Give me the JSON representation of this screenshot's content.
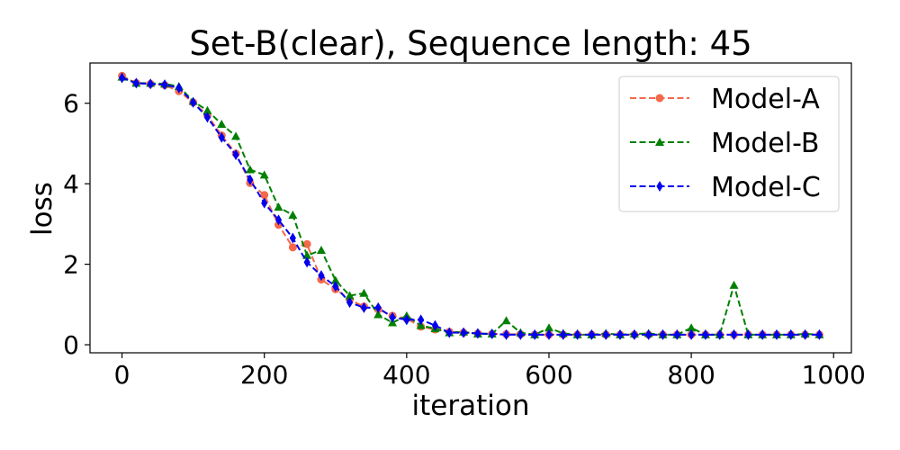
{
  "chart_data": {
    "type": "line",
    "title": "Set-B(clear), Sequence length: 45",
    "xlabel": "iteration",
    "ylabel": "loss",
    "xlim": [
      -45,
      1025
    ],
    "ylim": [
      -0.2,
      7.0
    ],
    "xticks": [
      0,
      200,
      400,
      600,
      800,
      1000
    ],
    "xtick_labels": [
      "0",
      "200",
      "400",
      "600",
      "800",
      "1000"
    ],
    "yticks": [
      0,
      2,
      4,
      6
    ],
    "ytick_labels": [
      "0",
      "2",
      "4",
      "6"
    ],
    "grid": false,
    "legend_position": "top-right",
    "x": [
      0,
      20,
      40,
      60,
      80,
      100,
      120,
      140,
      160,
      180,
      200,
      220,
      240,
      260,
      280,
      300,
      320,
      340,
      360,
      380,
      400,
      420,
      440,
      460,
      480,
      500,
      520,
      540,
      560,
      580,
      600,
      620,
      640,
      660,
      680,
      700,
      720,
      740,
      760,
      780,
      800,
      820,
      840,
      860,
      880,
      900,
      920,
      940,
      960,
      980
    ],
    "series": [
      {
        "name": "Model-A",
        "color": "#f4694b",
        "marker": "circle",
        "values": [
          6.68,
          6.5,
          6.48,
          6.45,
          6.3,
          6.02,
          5.7,
          5.2,
          4.75,
          4.02,
          3.72,
          2.98,
          2.42,
          2.5,
          1.62,
          1.38,
          1.12,
          0.95,
          0.88,
          0.72,
          0.65,
          0.45,
          0.38,
          0.32,
          0.3,
          0.28,
          0.27,
          0.26,
          0.26,
          0.25,
          0.25,
          0.25,
          0.25,
          0.25,
          0.25,
          0.25,
          0.25,
          0.25,
          0.25,
          0.25,
          0.25,
          0.25,
          0.25,
          0.25,
          0.25,
          0.25,
          0.25,
          0.25,
          0.25,
          0.25
        ]
      },
      {
        "name": "Model-B",
        "color": "#008000",
        "marker": "triangle",
        "values": [
          6.65,
          6.5,
          6.5,
          6.48,
          6.42,
          6.05,
          5.82,
          5.48,
          5.18,
          4.35,
          4.22,
          3.42,
          3.22,
          2.22,
          2.35,
          1.6,
          1.22,
          1.28,
          0.75,
          0.55,
          0.72,
          0.48,
          0.4,
          0.3,
          0.32,
          0.27,
          0.27,
          0.6,
          0.3,
          0.25,
          0.42,
          0.28,
          0.25,
          0.25,
          0.28,
          0.25,
          0.27,
          0.28,
          0.25,
          0.25,
          0.42,
          0.25,
          0.25,
          1.48,
          0.25,
          0.25,
          0.25,
          0.25,
          0.27,
          0.25
        ]
      },
      {
        "name": "Model-C",
        "color": "#0000ee",
        "marker": "diamond",
        "values": [
          6.63,
          6.5,
          6.48,
          6.46,
          6.38,
          6.02,
          5.65,
          5.15,
          4.72,
          4.1,
          3.52,
          3.1,
          2.65,
          2.05,
          1.72,
          1.45,
          1.05,
          0.92,
          0.92,
          0.68,
          0.62,
          0.62,
          0.48,
          0.3,
          0.3,
          0.28,
          0.27,
          0.25,
          0.25,
          0.25,
          0.25,
          0.25,
          0.25,
          0.25,
          0.25,
          0.25,
          0.25,
          0.25,
          0.25,
          0.25,
          0.25,
          0.25,
          0.25,
          0.25,
          0.25,
          0.25,
          0.25,
          0.25,
          0.25,
          0.25
        ]
      }
    ]
  }
}
